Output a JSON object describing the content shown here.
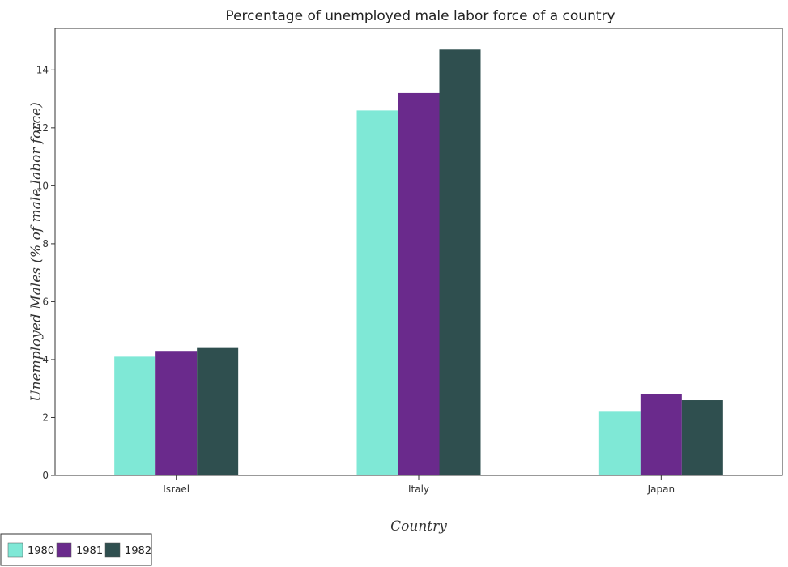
{
  "chart_data": {
    "type": "bar",
    "title": "Percentage of unemployed male labor force of a country",
    "xlabel": "Country",
    "ylabel": "Unemployed Males (% of male labor force)",
    "categories": [
      "Israel",
      "Italy",
      "Japan"
    ],
    "series": [
      {
        "name": "1980",
        "color": "#7fe8d6",
        "values": [
          4.1,
          12.6,
          2.2
        ]
      },
      {
        "name": "1981",
        "color": "#6a2a8c",
        "values": [
          4.3,
          13.2,
          2.8
        ]
      },
      {
        "name": "1982",
        "color": "#2f4f4f",
        "values": [
          4.4,
          14.7,
          2.6
        ]
      }
    ],
    "yticks": [
      0,
      2,
      4,
      6,
      8,
      10,
      12,
      14
    ],
    "ylim": [
      0,
      15.435
    ],
    "grid": false,
    "legend_position": "bottom-left"
  }
}
